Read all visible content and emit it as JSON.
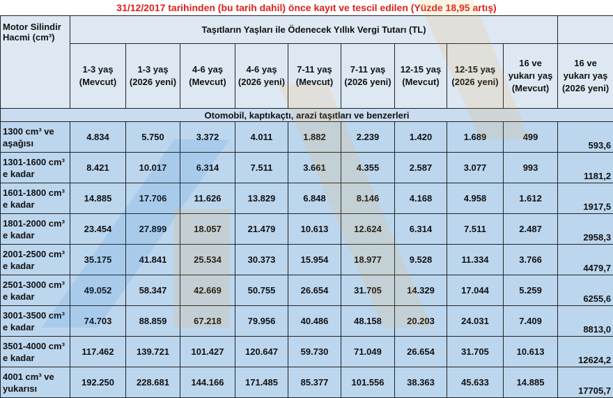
{
  "title": "31/12/2017 tarihinden (bu tarih dahil) önce kayıt ve tescil edilen (Yüzde 18,95 artış)",
  "table": {
    "corner_header": "Motor Silindir Hacmi (cm³)",
    "group_header": "Taşıtların Yaşları ile Ödenecek Yıllık Vergi Tutarı (TL)",
    "columns": [
      "1-3 yaş (Mevcut)",
      "1-3 yaş (2026 yeni)",
      "4-6 yaş (Mevcut)",
      "4-6 yaş (2026 yeni)",
      "7-11 yaş (Mevcut)",
      "7-11 yaş (2026 yeni)",
      "12-15 yaş (Mevcut)",
      "12-15 yaş (2026 yeni)",
      "16 ve yukarı yaş (Mevcut)",
      "16 ve yukarı yaş (2026 yeni)"
    ],
    "section": "Otomobil, kaptıkaçtı, arazi taşıtları ve benzerleri",
    "rows": [
      [
        "1300 cm³ ve aşağısı",
        "4.834",
        "5.750",
        "3.372",
        "4.011",
        "1.882",
        "2.239",
        "1.420",
        "1.689",
        "499",
        "593,6"
      ],
      [
        "1301-1600 cm³ e kadar",
        "8.421",
        "10.017",
        "6.314",
        "7.511",
        "3.661",
        "4.355",
        "2.587",
        "3.077",
        "993",
        "1181,2"
      ],
      [
        "1601-1800 cm³ e kadar",
        "14.885",
        "17.706",
        "11.626",
        "13.829",
        "6.848",
        "8.146",
        "4.168",
        "4.958",
        "1.612",
        "1917,5"
      ],
      [
        "1801-2000 cm³ e kadar",
        "23.454",
        "27.899",
        "18.057",
        "21.479",
        "10.613",
        "12.624",
        "6.314",
        "7.511",
        "2.487",
        "2958,3"
      ],
      [
        "2001-2500 cm³ e kadar",
        "35.175",
        "41.841",
        "25.534",
        "30.373",
        "15.954",
        "18.977",
        "9.528",
        "11.334",
        "3.766",
        "4479,7"
      ],
      [
        "2501-3000 cm³ e kadar",
        "49.052",
        "58.347",
        "42.669",
        "50.755",
        "26.654",
        "31.705",
        "14.329",
        "17.044",
        "5.259",
        "6255,6"
      ],
      [
        "3001-3500 cm³ e kadar",
        "74.703",
        "88.859",
        "67.218",
        "79.956",
        "40.486",
        "48.158",
        "20.203",
        "24.031",
        "7.409",
        "8813,0"
      ],
      [
        "3501-4000 cm³ e kadar",
        "117.462",
        "139.721",
        "101.427",
        "120.647",
        "59.730",
        "71.049",
        "26.654",
        "31.705",
        "10.613",
        "12624,2"
      ],
      [
        "4001 cm³ ve yukarısı",
        "192.250",
        "228.681",
        "144.166",
        "171.485",
        "85.377",
        "101.556",
        "38.363",
        "45.633",
        "14.885",
        "17705,7"
      ]
    ]
  }
}
